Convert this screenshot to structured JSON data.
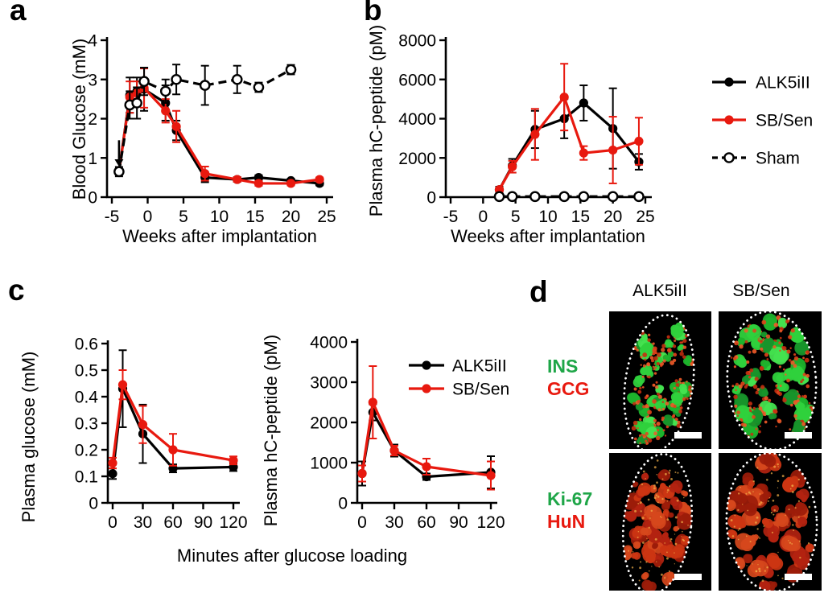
{
  "panels": {
    "a": {
      "letter": "a"
    },
    "b": {
      "letter": "b"
    },
    "c": {
      "letter": "c"
    },
    "d": {
      "letter": "d",
      "columns": [
        "ALK5iII",
        "SB/Sen"
      ],
      "rows": [
        {
          "line1": "INS",
          "line2": "GCG"
        },
        {
          "line1": "Ki-67",
          "line2": "HuN"
        }
      ]
    }
  },
  "colors": {
    "series_black": "#000000",
    "series_red": "#e8190f",
    "label_green": "#1fa648",
    "label_red": "#e8190f",
    "axis": "#000000"
  },
  "microscopy_palette": {
    "background": "#000000",
    "greens": [
      "#1db32c",
      "#2fd13c",
      "#45e24f",
      "#17942a"
    ],
    "reds": [
      "#e0421a",
      "#c52f10",
      "#f05a28"
    ],
    "dark_reds": [
      "#b32310",
      "#9c1c0a",
      "#cc3512",
      "#d6481c"
    ],
    "speckle": "#f2b04a",
    "outline": "#ffffff"
  },
  "chart_data": [
    {
      "id": "blood-glucose",
      "type": "line",
      "title": "",
      "xlabel": "Weeks after implantation",
      "ylabel": "Blood Glucose (mM)",
      "xlim": [
        -5,
        25
      ],
      "ylim": [
        0,
        4
      ],
      "xticks": [
        -5,
        0,
        5,
        10,
        15,
        20,
        25
      ],
      "yticks": [
        4,
        3,
        2,
        1,
        0
      ],
      "grid": false,
      "legend_position": "none",
      "annotation": {
        "type": "arrow-down",
        "x": -4,
        "from": 1.45,
        "to": 0.78
      },
      "series": [
        {
          "name": "ALK5iII",
          "color": "#000000",
          "marker": "filled",
          "line": "solid",
          "x": [
            -4,
            -2.5,
            -1.5,
            -0.5,
            2.5,
            4,
            8,
            12.5,
            15.5,
            20,
            24
          ],
          "y": [
            0.65,
            2.6,
            2.7,
            2.75,
            2.4,
            1.7,
            0.5,
            0.45,
            0.5,
            0.42,
            0.35
          ],
          "err": [
            0,
            0.45,
            0.35,
            0.55,
            0.45,
            0.25,
            0.12,
            0.06,
            0.06,
            0.05,
            0.05
          ]
        },
        {
          "name": "SB/Sen",
          "color": "#e8190f",
          "marker": "filled",
          "line": "solid",
          "x": [
            -4,
            -2.5,
            -1.5,
            -0.5,
            2.5,
            4,
            8,
            12.5,
            15.5,
            20,
            24
          ],
          "y": [
            0.65,
            2.55,
            2.65,
            2.78,
            2.2,
            1.8,
            0.6,
            0.45,
            0.35,
            0.35,
            0.45
          ],
          "err": [
            0,
            0.4,
            0.3,
            0.5,
            0.3,
            0.4,
            0.18,
            0.06,
            0.06,
            0.05,
            0.05
          ]
        },
        {
          "name": "Sham",
          "color": "#000000",
          "marker": "open",
          "line": "dashed",
          "x": [
            -4,
            -2.5,
            -1.5,
            -0.5,
            2.5,
            4,
            8,
            12.5,
            15.5,
            20
          ],
          "y": [
            0.65,
            2.35,
            2.4,
            2.95,
            2.7,
            3.0,
            2.85,
            3.0,
            2.8,
            3.25
          ],
          "err": [
            0.12,
            0.35,
            0.4,
            0.35,
            0.3,
            0.38,
            0.5,
            0.35,
            0.12,
            0.12
          ]
        }
      ]
    },
    {
      "id": "plasma-c-peptide",
      "type": "line",
      "title": "",
      "xlabel": "Weeks after implantation",
      "ylabel": "Plasma hC-peptide (pM)",
      "xlim": [
        -5,
        25
      ],
      "ylim": [
        0,
        8000
      ],
      "xticks": [
        -5,
        0,
        5,
        10,
        15,
        20,
        25
      ],
      "yticks": [
        8000,
        6000,
        4000,
        2000,
        0
      ],
      "grid": false,
      "legend_position": "right-outside",
      "series": [
        {
          "name": "ALK5iII",
          "color": "#000000",
          "marker": "filled",
          "line": "solid",
          "x": [
            2.5,
            4.5,
            8,
            12.5,
            15.5,
            20,
            24
          ],
          "y": [
            380,
            1600,
            3450,
            4000,
            4800,
            3500,
            1800
          ],
          "err": [
            150,
            350,
            950,
            1000,
            900,
            2050,
            400
          ]
        },
        {
          "name": "SB/Sen",
          "color": "#e8190f",
          "marker": "filled",
          "line": "solid",
          "x": [
            2.5,
            4.5,
            8,
            12.5,
            15.5,
            20,
            24
          ],
          "y": [
            380,
            1550,
            3200,
            5100,
            2250,
            2400,
            2850
          ],
          "err": [
            100,
            300,
            1300,
            1700,
            350,
            1700,
            1200
          ]
        },
        {
          "name": "Sham",
          "color": "#000000",
          "marker": "open",
          "line": "dashed",
          "x": [
            2.5,
            4.5,
            8,
            12.5,
            15.5,
            20,
            24
          ],
          "y": [
            30,
            30,
            30,
            30,
            30,
            30,
            30
          ],
          "err": [
            0,
            0,
            0,
            0,
            0,
            0,
            0
          ]
        }
      ]
    },
    {
      "id": "ogtt-glucose",
      "type": "line",
      "title": "",
      "xlabel": "Minutes after glucose loading",
      "ylabel": "Plasma glucose (mM)",
      "xlim": [
        0,
        120
      ],
      "ylim": [
        0,
        0.6
      ],
      "xticks": [
        0,
        30,
        60,
        90,
        120
      ],
      "yticks": [
        0.6,
        0.5,
        0.4,
        0.3,
        0.2,
        0.1,
        0
      ],
      "grid": false,
      "legend_position": "none",
      "series": [
        {
          "name": "ALK5iII",
          "color": "#000000",
          "marker": "filled",
          "line": "solid",
          "x": [
            0,
            10,
            30,
            60,
            120
          ],
          "y": [
            0.11,
            0.43,
            0.26,
            0.13,
            0.135
          ],
          "err": [
            0.02,
            0.145,
            0.11,
            0.015,
            0.015
          ]
        },
        {
          "name": "SB/Sen",
          "color": "#e8190f",
          "marker": "filled",
          "line": "solid",
          "x": [
            0,
            10,
            30,
            60,
            120
          ],
          "y": [
            0.15,
            0.445,
            0.295,
            0.2,
            0.16
          ],
          "err": [
            0.02,
            0.055,
            0.07,
            0.06,
            0.015
          ]
        }
      ]
    },
    {
      "id": "ogtt-c-peptide",
      "type": "line",
      "title": "",
      "xlabel": "Minutes after glucose loading",
      "ylabel": "Plasma hC-peptide (pM)",
      "xlim": [
        0,
        120
      ],
      "ylim": [
        0,
        4000
      ],
      "xticks": [
        0,
        30,
        60,
        90,
        120
      ],
      "yticks": [
        4000,
        3000,
        2000,
        1000,
        0
      ],
      "grid": false,
      "legend_position": "inside-top-right",
      "series": [
        {
          "name": "ALK5iII",
          "color": "#000000",
          "marker": "filled",
          "line": "solid",
          "x": [
            0,
            10,
            30,
            60,
            120
          ],
          "y": [
            730,
            2250,
            1300,
            650,
            760
          ],
          "err": [
            300,
            200,
            150,
            80,
            400
          ]
        },
        {
          "name": "SB/Sen",
          "color": "#e8190f",
          "marker": "filled",
          "line": "solid",
          "x": [
            0,
            10,
            30,
            60,
            120
          ],
          "y": [
            730,
            2500,
            1300,
            900,
            680
          ],
          "err": [
            200,
            900,
            120,
            200,
            350
          ]
        }
      ]
    }
  ]
}
